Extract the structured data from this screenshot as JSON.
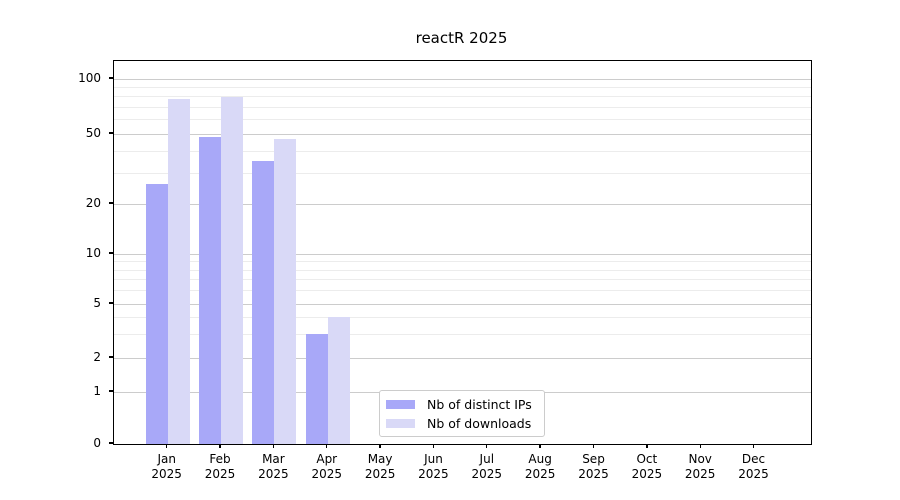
{
  "figure": {
    "title": "reactR 2025"
  },
  "chart_data": {
    "type": "bar",
    "title": "reactR 2025",
    "categories": [
      "Jan 2025",
      "Feb 2025",
      "Mar 2025",
      "Apr 2025",
      "May 2025",
      "Jun 2025",
      "Jul 2025",
      "Aug 2025",
      "Sep 2025",
      "Oct 2025",
      "Nov 2025",
      "Dec 2025"
    ],
    "x_tick_month_line": [
      "Jan",
      "Feb",
      "Mar",
      "Apr",
      "May",
      "Jun",
      "Jul",
      "Aug",
      "Sep",
      "Oct",
      "Nov",
      "Dec"
    ],
    "x_tick_year_line": "2025",
    "series": [
      {
        "name": "Nb of distinct IPs",
        "color": "#a8a8f8",
        "values": [
          26,
          48,
          35,
          3,
          null,
          null,
          null,
          null,
          null,
          null,
          null,
          null
        ]
      },
      {
        "name": "Nb of downloads",
        "color": "#d9d9f7",
        "values": [
          78,
          80,
          47,
          4,
          null,
          null,
          null,
          null,
          null,
          null,
          null,
          null
        ]
      }
    ],
    "yscale": "log-like",
    "yticks": [
      0,
      1,
      2,
      5,
      10,
      20,
      50,
      100
    ],
    "minor_yticks": [
      3,
      4,
      6,
      7,
      8,
      9,
      30,
      40,
      60,
      70,
      80,
      90
    ],
    "ylim": [
      0,
      130
    ],
    "xlabel": "",
    "ylabel": "",
    "grid": "horizontal major and minor",
    "legend_position": "lower center inside plot"
  },
  "legend": {
    "entries": [
      {
        "label": "Nb of distinct IPs",
        "color": "#a8a8f8"
      },
      {
        "label": "Nb of downloads",
        "color": "#d9d9f7"
      }
    ]
  }
}
